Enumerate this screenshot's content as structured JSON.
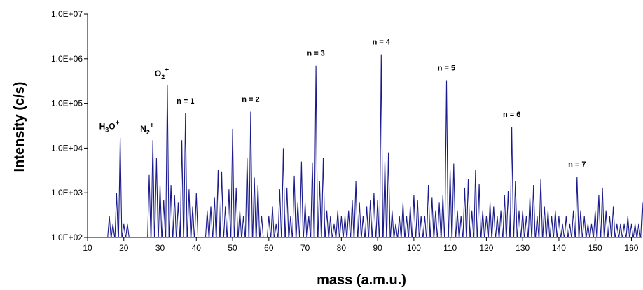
{
  "chart_data": {
    "type": "line",
    "xlabel": "mass (a.m.u.)",
    "ylabel": "Intensity (c/s)",
    "xlim": [
      10,
      163
    ],
    "ylim": [
      100,
      10000000
    ],
    "yscale": "log",
    "xticks": [
      10,
      20,
      30,
      40,
      50,
      60,
      70,
      80,
      90,
      100,
      110,
      120,
      130,
      140,
      150,
      160
    ],
    "yticks": [
      100,
      1000,
      10000,
      100000,
      1000000,
      10000000
    ],
    "ytick_labels": [
      "1.0E+02",
      "1.0E+03",
      "1.0E+04",
      "1.0E+05",
      "1.0E+06",
      "1.0E+07"
    ],
    "color": "#1a1a8c",
    "grid": false,
    "annotations": [
      {
        "id": "h3o",
        "base": "H",
        "sub1": "3",
        "mid": "O",
        "sup": "+",
        "x": 19,
        "y": 17000
      },
      {
        "id": "n2",
        "base": "N",
        "sub1": "2",
        "sup": "+",
        "x": 28,
        "y": 15000
      },
      {
        "id": "o2",
        "base": "O",
        "sub1": "2",
        "sup": "+",
        "x": 32,
        "y": 260000
      },
      {
        "id": "n1",
        "text": "n = 1",
        "x": 37,
        "y": 60000
      },
      {
        "id": "n2b",
        "text": "n = 2",
        "x": 55,
        "y": 65000
      },
      {
        "id": "n3",
        "text": "n = 3",
        "x": 73,
        "y": 700000
      },
      {
        "id": "n4",
        "text": "n = 4",
        "x": 91,
        "y": 1250000
      },
      {
        "id": "n5",
        "text": "n = 5",
        "x": 109,
        "y": 330000
      },
      {
        "id": "n6",
        "text": "n = 6",
        "x": 127,
        "y": 30000
      },
      {
        "id": "n7",
        "text": "n = 7",
        "x": 145,
        "y": 2300
      }
    ],
    "series": [
      {
        "x": [
          16,
          17,
          18,
          19,
          20,
          21,
          27,
          28,
          29,
          30,
          31,
          32,
          33,
          34,
          35,
          36,
          37,
          38,
          39,
          40,
          43,
          44,
          45,
          46,
          47,
          48,
          49,
          50,
          51,
          52,
          53,
          54,
          55,
          56,
          57,
          58,
          60,
          61,
          62,
          63,
          64,
          65,
          66,
          67,
          68,
          69,
          70,
          71,
          72,
          73,
          74,
          75,
          76,
          77,
          78,
          79,
          80,
          81,
          82,
          83,
          84,
          85,
          86,
          87,
          88,
          89,
          90,
          91,
          92,
          93,
          94,
          95,
          96,
          97,
          98,
          99,
          100,
          101,
          102,
          103,
          104,
          105,
          106,
          107,
          108,
          109,
          110,
          111,
          112,
          113,
          114,
          115,
          116,
          117,
          118,
          119,
          120,
          121,
          122,
          123,
          124,
          125,
          126,
          127,
          128,
          129,
          130,
          131,
          132,
          133,
          134,
          135,
          136,
          137,
          138,
          139,
          140,
          141,
          142,
          143,
          144,
          145,
          146,
          147,
          148,
          149,
          150,
          151,
          152,
          153,
          154,
          155,
          156,
          157,
          158,
          159,
          160,
          161,
          162,
          163
        ],
        "y": [
          300,
          200,
          1000,
          17000,
          200,
          200,
          2500,
          15000,
          6000,
          1500,
          700,
          260000,
          1500,
          900,
          600,
          15000,
          60000,
          1200,
          500,
          1000,
          400,
          500,
          800,
          3200,
          3000,
          500,
          1200,
          27000,
          1300,
          400,
          300,
          6000,
          65000,
          2200,
          1500,
          300,
          300,
          500,
          200,
          1200,
          10000,
          1300,
          300,
          2400,
          600,
          5000,
          600,
          300,
          4800,
          700000,
          1800,
          6000,
          400,
          300,
          200,
          400,
          300,
          300,
          400,
          700,
          1800,
          600,
          300,
          500,
          700,
          1000,
          700,
          1250000,
          5000,
          8000,
          400,
          200,
          300,
          600,
          300,
          500,
          900,
          700,
          300,
          300,
          1500,
          800,
          400,
          600,
          900,
          330000,
          3200,
          4500,
          400,
          300,
          1300,
          2000,
          400,
          3200,
          1600,
          400,
          300,
          600,
          500,
          300,
          400,
          900,
          1100,
          30000,
          1800,
          400,
          400,
          300,
          800,
          1500,
          300,
          2000,
          500,
          400,
          300,
          400,
          300,
          200,
          300,
          200,
          400,
          2300,
          400,
          300,
          200,
          200,
          400,
          900,
          1300,
          400,
          300,
          500,
          200,
          200,
          200,
          300,
          200,
          200,
          200,
          600
        ]
      }
    ]
  }
}
